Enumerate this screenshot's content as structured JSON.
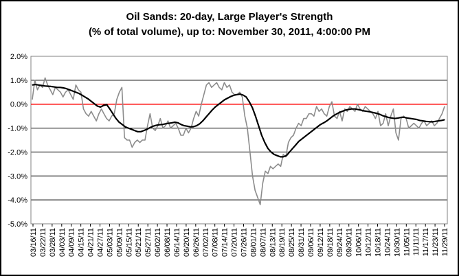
{
  "chart_data": {
    "type": "line",
    "title": "Oil Sands: 20-day, Large Player's Strength",
    "subtitle": "(% of total volume), up to: November 30, 2011, 4:00:00 PM",
    "xlabel": "",
    "ylabel": "",
    "ylim": [
      -5.0,
      2.0
    ],
    "y_ticks": [
      "2.0%",
      "1.0%",
      "0.0%",
      "-1.0%",
      "-2.0%",
      "-3.0%",
      "-4.0%",
      "-5.0%"
    ],
    "y_tick_values": [
      2.0,
      1.0,
      0.0,
      -1.0,
      -2.0,
      -3.0,
      -4.0,
      -5.0
    ],
    "x_ticks": [
      "03/16/11",
      "03/22/11",
      "03/28/11",
      "04/03/11",
      "04/09/11",
      "04/15/11",
      "04/21/11",
      "04/27/11",
      "05/03/11",
      "05/09/11",
      "05/15/11",
      "05/21/11",
      "05/27/11",
      "06/02/11",
      "06/08/11",
      "06/14/11",
      "06/20/11",
      "06/26/11",
      "07/02/11",
      "07/08/11",
      "07/14/11",
      "07/20/11",
      "07/26/11",
      "08/01/11",
      "08/07/11",
      "08/13/11",
      "08/19/11",
      "08/25/11",
      "08/31/11",
      "09/06/11",
      "09/12/11",
      "09/18/11",
      "09/24/11",
      "09/30/11",
      "10/06/11",
      "10/12/11",
      "10/18/11",
      "10/24/11",
      "10/30/11",
      "11/05/11",
      "11/11/11",
      "11/17/11",
      "11/23/11",
      "11/29/11"
    ],
    "grid": true,
    "reference_line": {
      "value": 0.0,
      "color": "#ff0000"
    },
    "colors": {
      "daily": "#8c8c8c",
      "avg": "#000000",
      "grid": "#000000",
      "ref": "#ff0000"
    },
    "series": [
      {
        "values": [
          0.2,
          1.0,
          0.6,
          0.8,
          0.7,
          1.1,
          0.8,
          0.6,
          0.4,
          0.7,
          0.6,
          0.5,
          0.3,
          0.5,
          0.6,
          0.4,
          0.2,
          0.8,
          0.6,
          0.5,
          -0.2,
          -0.4,
          -0.5,
          -0.3,
          -0.5,
          -0.7,
          -0.4,
          -0.2,
          -0.4,
          -0.6,
          -0.7,
          -0.5,
          -0.4,
          0.2,
          0.5,
          0.7,
          -1.4,
          -1.5,
          -1.5,
          -1.8,
          -1.6,
          -1.5,
          -1.6,
          -1.5,
          -1.5,
          -0.9,
          -0.4,
          -1.0,
          -1.1,
          -0.9,
          -0.6,
          -1.0,
          -0.9,
          -0.7,
          -1.0,
          -0.9,
          -0.8,
          -1.0,
          -1.3,
          -1.3,
          -1.0,
          -1.2,
          -1.0,
          -0.6,
          -0.3,
          -0.5,
          0.0,
          0.4,
          0.8,
          0.9,
          0.7,
          0.8,
          0.9,
          0.7,
          0.6,
          0.9,
          0.7,
          0.8,
          0.5,
          0.4,
          0.4,
          0.5,
          0.3,
          -0.5,
          -1.0,
          -2.0,
          -3.0,
          -3.6,
          -3.9,
          -4.2,
          -3.3,
          -2.8,
          -2.9,
          -2.6,
          -2.7,
          -2.6,
          -2.5,
          -2.6,
          -2.1,
          -2.2,
          -1.6,
          -1.4,
          -1.3,
          -1.0,
          -0.8,
          -0.9,
          -0.6,
          -0.6,
          -0.4,
          -0.4,
          -0.5,
          -0.1,
          -0.3,
          -0.2,
          -0.4,
          -0.5,
          -0.1,
          0.1,
          -0.5,
          -0.6,
          -0.3,
          -0.7,
          -0.2,
          -0.3,
          -0.1,
          -0.2,
          -0.3,
          0.0,
          -0.2,
          -0.3,
          -0.1,
          -0.2,
          -0.3,
          -0.4,
          -0.6,
          -0.3,
          -0.9,
          -0.8,
          -0.4,
          -0.9,
          -0.5,
          -0.2,
          -1.2,
          -1.5,
          -0.6,
          -0.5,
          -0.6,
          -1.0,
          -0.9,
          -0.8,
          -0.9,
          -1.0,
          -0.8,
          -0.7,
          -0.9,
          -0.8,
          -0.7,
          -0.9,
          -0.8,
          -0.6,
          -0.4,
          -0.1
        ]
      },
      {
        "values": [
          0.8,
          0.82,
          0.8,
          0.78,
          0.76,
          0.75,
          0.74,
          0.72,
          0.7,
          0.7,
          0.68,
          0.65,
          0.6,
          0.55,
          0.5,
          0.45,
          0.38,
          0.3,
          0.22,
          0.12,
          0.02,
          -0.08,
          -0.12,
          -0.05,
          -0.02,
          -0.2,
          -0.4,
          -0.6,
          -0.75,
          -0.85,
          -0.95,
          -1.0,
          -1.05,
          -1.1,
          -1.15,
          -1.15,
          -1.1,
          -1.05,
          -0.98,
          -0.92,
          -0.88,
          -0.86,
          -0.85,
          -0.82,
          -0.8,
          -0.78,
          -0.75,
          -0.78,
          -0.85,
          -0.9,
          -0.92,
          -0.95,
          -0.94,
          -0.9,
          -0.82,
          -0.7,
          -0.55,
          -0.4,
          -0.25,
          -0.12,
          -0.02,
          0.08,
          0.18,
          0.25,
          0.32,
          0.37,
          0.4,
          0.42,
          0.38,
          0.3,
          0.1,
          -0.15,
          -0.5,
          -0.9,
          -1.3,
          -1.6,
          -1.85,
          -2.0,
          -2.1,
          -2.15,
          -2.2,
          -2.2,
          -2.15,
          -2.0,
          -1.85,
          -1.7,
          -1.55,
          -1.45,
          -1.35,
          -1.25,
          -1.15,
          -1.05,
          -0.95,
          -0.85,
          -0.78,
          -0.7,
          -0.6,
          -0.5,
          -0.42,
          -0.35,
          -0.3,
          -0.25,
          -0.22,
          -0.2,
          -0.2,
          -0.22,
          -0.25,
          -0.28,
          -0.3,
          -0.32,
          -0.35,
          -0.38,
          -0.42,
          -0.48,
          -0.52,
          -0.56,
          -0.58,
          -0.6,
          -0.58,
          -0.55,
          -0.55,
          -0.58,
          -0.6,
          -0.62,
          -0.64,
          -0.68,
          -0.7,
          -0.72,
          -0.73,
          -0.74,
          -0.72,
          -0.7,
          -0.68,
          -0.65
        ]
      }
    ]
  }
}
